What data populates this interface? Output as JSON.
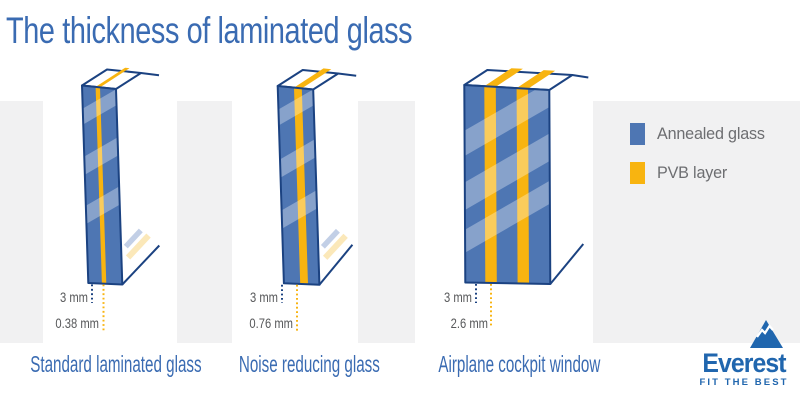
{
  "title": "The thickness of laminated glass",
  "colors": {
    "annealed_blue": "#4E76B3",
    "pvb_yellow": "#F8B410",
    "outline_navy": "#1B4281",
    "title_blue": "#3A6BB2",
    "label_gray": "#58595B",
    "legend_gray": "#6D6E71",
    "card_gray": "#F1F1F2",
    "brand_blue": "#2066AE",
    "pale_blue_streak": "#C2CFE6",
    "pale_yellow_streak": "#FBE8B9"
  },
  "panels": [
    {
      "caption": "Standard laminated glass",
      "glass_thickness": "3 mm",
      "pvb_thickness": "0.38 mm"
    },
    {
      "caption": "Noise reducing glass",
      "glass_thickness": "3 mm",
      "pvb_thickness": "0.76 mm"
    },
    {
      "caption": "Airplane cockpit window",
      "glass_thickness": "3 mm",
      "pvb_thickness": "2.6 mm"
    }
  ],
  "legend": [
    {
      "label": "Annealed glass",
      "color": "#4E76B3"
    },
    {
      "label": "PVB layer",
      "color": "#F8B410"
    }
  ],
  "brand": {
    "name": "Everest",
    "tagline": "FIT THE BEST"
  }
}
